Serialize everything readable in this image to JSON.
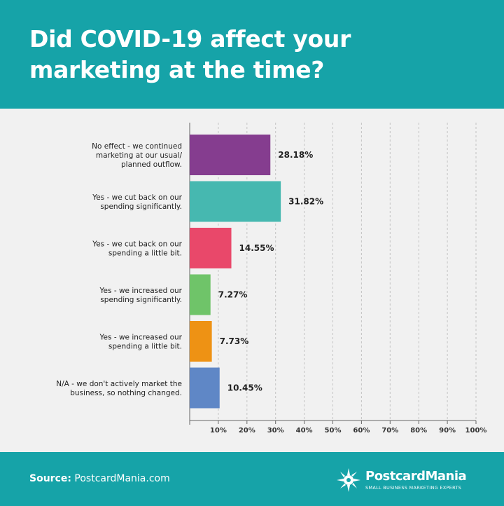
{
  "header": {
    "title": "Did COVID-19 affect your marketing at the time?"
  },
  "footer": {
    "source_label": "Source:",
    "source_value": "PostcardMania.com",
    "brand_name": "PostcardMania",
    "brand_tagline": "SMALL BUSINESS MARKETING EXPERTS"
  },
  "colors": {
    "header_bg": "#16a3a8",
    "page_bg": "#f1f1f1"
  },
  "chart_data": {
    "type": "bar",
    "orientation": "horizontal",
    "title": "Did COVID-19 affect your marketing at the time?",
    "xlim": [
      0,
      100
    ],
    "grid": true,
    "grid_style": "dashed-vertical",
    "x_ticks": [
      "10%",
      "20%",
      "30%",
      "40%",
      "50%",
      "60%",
      "70%",
      "80%",
      "90%",
      "100%"
    ],
    "categories": [
      [
        "No effect - we continued",
        "marketing at our usual/",
        "planned outflow."
      ],
      [
        "Yes - we cut back on our",
        "spending significantly."
      ],
      [
        "Yes - we cut back on our",
        "spending a little bit."
      ],
      [
        "Yes - we increased our",
        "spending significantly."
      ],
      [
        "Yes - we increased our",
        "spending a little bit."
      ],
      [
        "N/A - we don't actively market the",
        "business, so nothing changed."
      ]
    ],
    "values": [
      28.18,
      31.82,
      14.55,
      7.27,
      7.73,
      10.45
    ],
    "value_labels": [
      "28.18%",
      "31.82%",
      "14.55%",
      "7.27%",
      "7.73%",
      "10.45%"
    ],
    "bar_colors": [
      "#853d8f",
      "#46b8b0",
      "#e9486a",
      "#6fc469",
      "#ee9214",
      "#5f87c6"
    ]
  }
}
